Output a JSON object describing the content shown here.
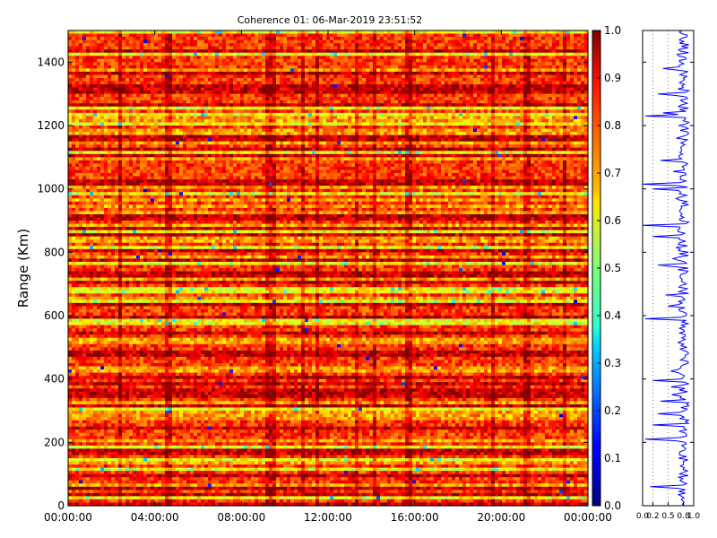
{
  "chart_data": [
    {
      "type": "heatmap",
      "title": "Coherence 01: 06-Mar-2019 23:51:52",
      "xlabel": "",
      "ylabel": "Range (Km)",
      "x_ticks": [
        "00:00:00",
        "04:00:00",
        "08:00:00",
        "12:00:00",
        "16:00:00",
        "20:00:00",
        "00:00:00"
      ],
      "y_ticks": [
        0,
        200,
        400,
        600,
        800,
        1000,
        1200,
        1400
      ],
      "ylim": [
        0,
        1500
      ],
      "colorbar": {
        "colormap": "jet",
        "range": [
          0.0,
          1.0
        ],
        "ticks": [
          "0.0",
          "0.1",
          "0.2",
          "0.3",
          "0.4",
          "0.5",
          "0.6",
          "0.7",
          "0.8",
          "0.9",
          "1.0"
        ]
      },
      "grid": false
    },
    {
      "type": "line",
      "orientation": "vertical-profile",
      "xlim": [
        0.0,
        1.0
      ],
      "x_ticks": [
        "0.0",
        "0.2",
        "0.5",
        "0.8",
        "1.0"
      ],
      "ylim": [
        0,
        1500
      ],
      "y_ticks": [
        0,
        200,
        400,
        600,
        800,
        1000,
        1200,
        1400
      ],
      "line_color": "#0000ff",
      "reference_lines": [
        0.2,
        0.5
      ],
      "spikes": [
        {
          "range": 60,
          "value": 0.15
        },
        {
          "range": 210,
          "value": 0.05
        },
        {
          "range": 255,
          "value": 0.2
        },
        {
          "range": 290,
          "value": 0.3
        },
        {
          "range": 330,
          "value": 0.35
        },
        {
          "range": 395,
          "value": 0.2
        },
        {
          "range": 590,
          "value": 0.05
        },
        {
          "range": 630,
          "value": 0.5
        },
        {
          "range": 665,
          "value": 0.45
        },
        {
          "range": 760,
          "value": 0.3
        },
        {
          "range": 850,
          "value": 0.2
        },
        {
          "range": 885,
          "value": 0.0
        },
        {
          "range": 1000,
          "value": 0.2
        },
        {
          "range": 1015,
          "value": 0.0
        },
        {
          "range": 1090,
          "value": 0.35
        },
        {
          "range": 1230,
          "value": 0.05
        },
        {
          "range": 1240,
          "value": 0.4
        },
        {
          "range": 1300,
          "value": 0.3
        },
        {
          "range": 1380,
          "value": 0.4
        }
      ]
    }
  ]
}
